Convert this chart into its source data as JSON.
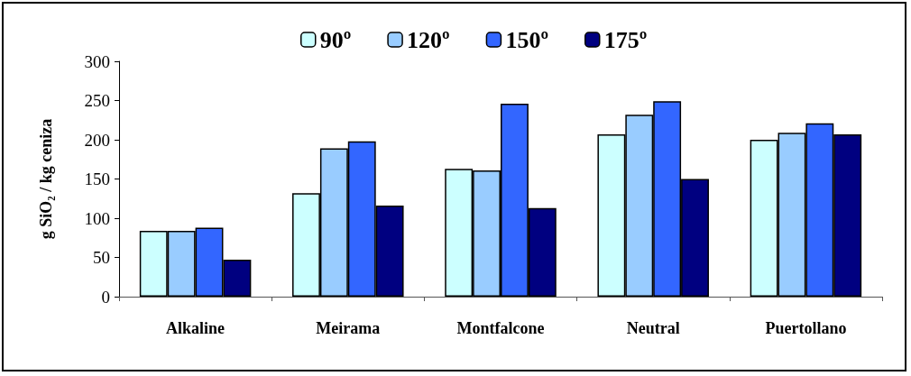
{
  "chart_data": {
    "type": "bar",
    "ylabel": "g SiO₂ / kg ceniza",
    "categories": [
      "Alkaline",
      "Meirama",
      "Montfalcone",
      "Neutral",
      "Puertollano"
    ],
    "series": [
      {
        "name": "90º",
        "color": "#ccffff",
        "values": [
          84,
          132,
          163,
          207,
          200
        ]
      },
      {
        "name": "120º",
        "color": "#99ccff",
        "values": [
          84,
          189,
          161,
          232,
          209
        ]
      },
      {
        "name": "150º",
        "color": "#3366ff",
        "values": [
          88,
          198,
          246,
          249,
          221
        ]
      },
      {
        "name": "175º",
        "color": "#000080",
        "values": [
          47,
          116,
          113,
          150,
          207
        ]
      }
    ],
    "ylim": [
      0,
      300
    ],
    "yticks": [
      0,
      50,
      100,
      150,
      200,
      250,
      300
    ],
    "grid": false,
    "legend": "top"
  }
}
